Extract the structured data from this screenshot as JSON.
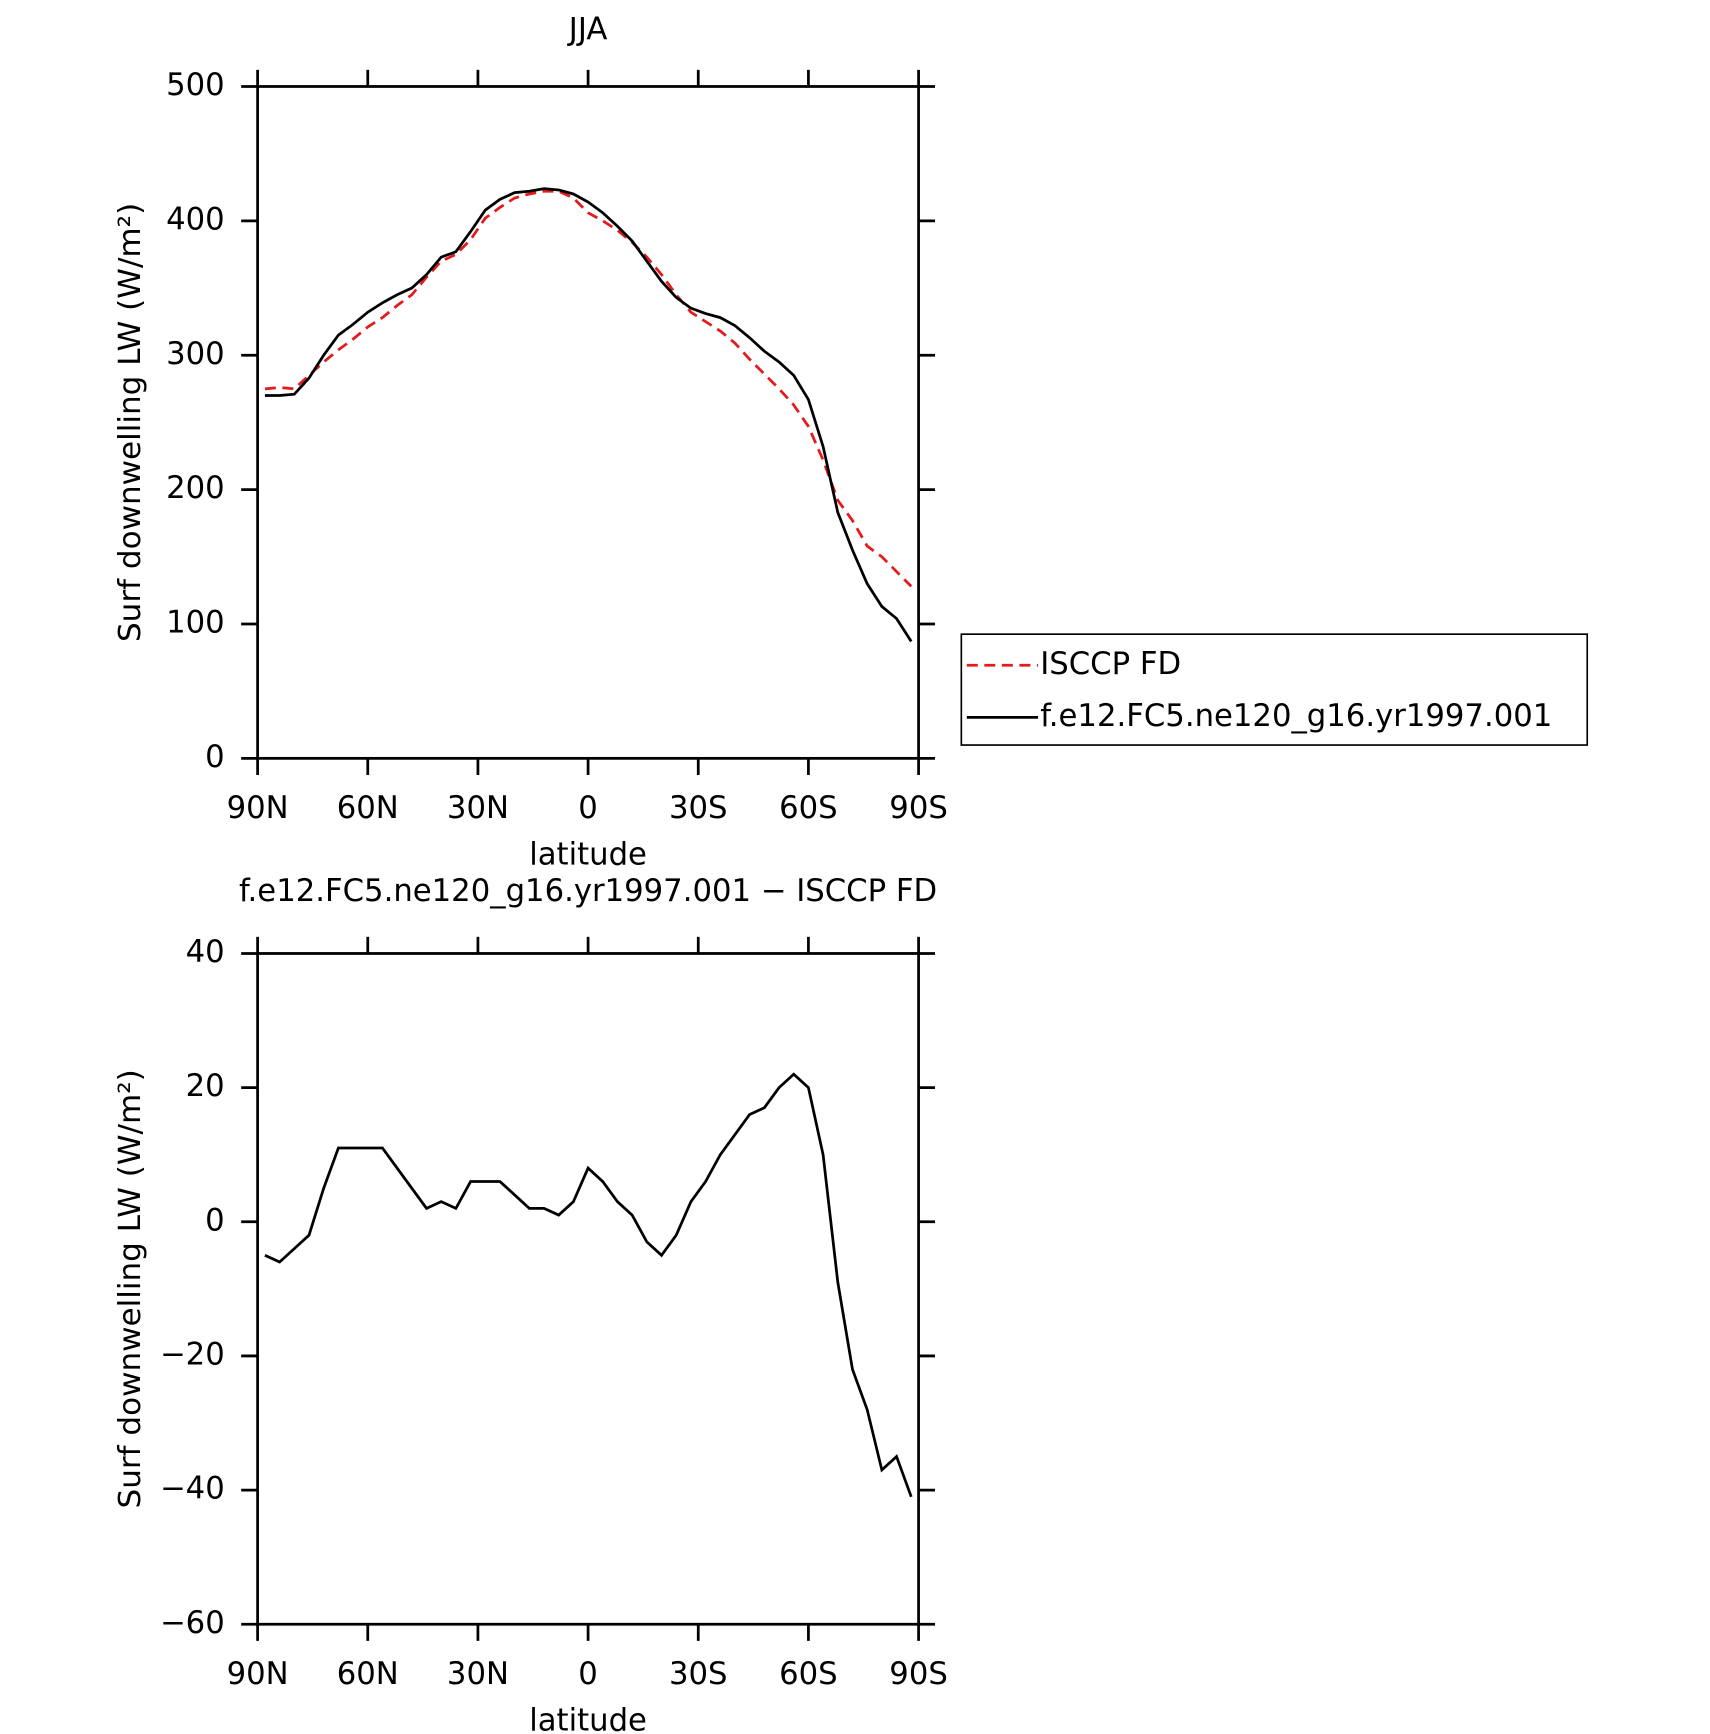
{
  "chart_data": [
    {
      "type": "line",
      "title": "JJA",
      "xlabel": "latitude",
      "ylabel": "Surf downwelling LW (W/m²)",
      "x": [
        88,
        84,
        80,
        76,
        72,
        68,
        64,
        60,
        56,
        52,
        48,
        44,
        40,
        36,
        32,
        28,
        24,
        20,
        16,
        12,
        8,
        4,
        0,
        -4,
        -8,
        -12,
        -16,
        -20,
        -24,
        -28,
        -32,
        -36,
        -40,
        -44,
        -48,
        -52,
        -56,
        -60,
        -64,
        -68,
        -72,
        -76,
        -80,
        -84,
        -88
      ],
      "xlim": [
        90,
        -90
      ],
      "xticks": [
        {
          "value": 90,
          "label": "90N"
        },
        {
          "value": 60,
          "label": "60N"
        },
        {
          "value": 30,
          "label": "30N"
        },
        0,
        {
          "value": -30,
          "label": "30S"
        },
        {
          "value": -60,
          "label": "60S"
        },
        {
          "value": -90,
          "label": "90S"
        }
      ],
      "ylim": [
        0,
        500
      ],
      "yticks": [
        0,
        100,
        200,
        300,
        400,
        500
      ],
      "legend": "right",
      "series": [
        {
          "name": "ISCCP FD",
          "color": "#e41a1c",
          "dash": true,
          "values": [
            275,
            276,
            275,
            285,
            295,
            304,
            312,
            321,
            328,
            337,
            345,
            358,
            370,
            375,
            386,
            402,
            410,
            417,
            420,
            422,
            422,
            417,
            406,
            400,
            393,
            384,
            373,
            360,
            345,
            332,
            325,
            318,
            309,
            297,
            286,
            275,
            263,
            247,
            222,
            192,
            177,
            158,
            150,
            139,
            128
          ]
        },
        {
          "name": "f.e12.FC5.ne120_g16.yr1997.001",
          "color": "#000000",
          "dash": false,
          "values": [
            270,
            270,
            271,
            283,
            300,
            315,
            323,
            332,
            339,
            345,
            350,
            360,
            373,
            377,
            392,
            408,
            416,
            421,
            422,
            424,
            423,
            420,
            414,
            406,
            396,
            385,
            370,
            355,
            343,
            335,
            331,
            328,
            322,
            313,
            303,
            295,
            285,
            267,
            232,
            183,
            155,
            130,
            113,
            104,
            87
          ]
        }
      ]
    },
    {
      "type": "line",
      "title": "f.e12.FC5.ne120_g16.yr1997.001 − ISCCP FD",
      "xlabel": "latitude",
      "ylabel": "Surf downwelling LW (W/m²)",
      "x": [
        88,
        84,
        80,
        76,
        72,
        68,
        64,
        60,
        56,
        52,
        48,
        44,
        40,
        36,
        32,
        28,
        24,
        20,
        16,
        12,
        8,
        4,
        0,
        -4,
        -8,
        -12,
        -16,
        -20,
        -24,
        -28,
        -32,
        -36,
        -40,
        -44,
        -48,
        -52,
        -56,
        -60,
        -64,
        -68,
        -72,
        -76,
        -80,
        -84,
        -88
      ],
      "xlim": [
        90,
        -90
      ],
      "xticks": [
        {
          "value": 90,
          "label": "90N"
        },
        {
          "value": 60,
          "label": "60N"
        },
        {
          "value": 30,
          "label": "30N"
        },
        0,
        {
          "value": -30,
          "label": "30S"
        },
        {
          "value": -60,
          "label": "60S"
        },
        {
          "value": -90,
          "label": "90S"
        }
      ],
      "ylim": [
        -60,
        40
      ],
      "yticks": [
        {
          "value": -60,
          "label": "−60"
        },
        {
          "value": -40,
          "label": "−40"
        },
        {
          "value": -20,
          "label": "−20"
        },
        0,
        20,
        40
      ],
      "series": [
        {
          "color": "#000000",
          "dash": false,
          "values": [
            -5,
            -6,
            -4,
            -2,
            5,
            11,
            11,
            11,
            11,
            8,
            5,
            2,
            3,
            2,
            6,
            6,
            6,
            4,
            2,
            2,
            1,
            3,
            8,
            6,
            3,
            1,
            -3,
            -5,
            -2,
            3,
            6,
            10,
            13,
            16,
            17,
            20,
            22,
            20,
            10,
            -9,
            -22,
            -28,
            -37,
            -35,
            -41
          ]
        }
      ]
    }
  ]
}
